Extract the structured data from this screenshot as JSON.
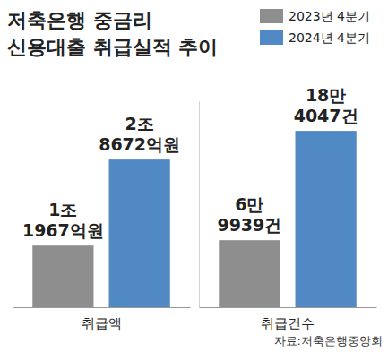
{
  "chart_data": [
    {
      "type": "bar",
      "title": [
        "저축은행 중금리",
        "신용대출 취급실적 추이"
      ],
      "categories": [
        "취급액"
      ],
      "series": [
        {
          "name": "2023년 4분기",
          "color": "#8e8e8e",
          "values": [
            11967
          ],
          "value_labels": [
            "1조 1967억원"
          ]
        },
        {
          "name": "2024년 4분기",
          "color": "#5089c3",
          "values": [
            28672
          ],
          "value_labels": [
            "2조 8672억원"
          ]
        }
      ],
      "ylim": [
        0,
        40000
      ],
      "tick_labels": "x",
      "data_labels": true,
      "legend": "top-right"
    },
    {
      "type": "bar",
      "categories": [
        "취급건수"
      ],
      "series": [
        {
          "color": "#8e8e8e",
          "values": [
            69939
          ],
          "value_labels": [
            "6만 9939건"
          ]
        },
        {
          "color": "#5089c3",
          "values": [
            184047
          ],
          "value_labels": [
            "18만 4047건"
          ]
        }
      ],
      "ylim": [
        0,
        215000
      ],
      "tick_labels": "x",
      "data_labels": true,
      "source": "자료:저축은행중앙회"
    }
  ]
}
